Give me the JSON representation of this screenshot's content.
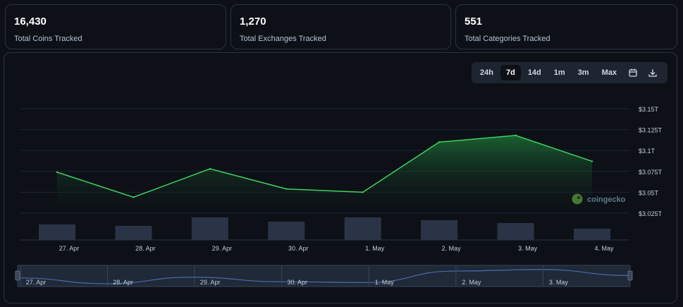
{
  "stats": [
    {
      "value": "16,430",
      "label": "Total Coins Tracked"
    },
    {
      "value": "1,270",
      "label": "Total Exchanges Tracked"
    },
    {
      "value": "551",
      "label": "Total Categories Tracked"
    }
  ],
  "range_buttons": [
    "24h",
    "7d",
    "14d",
    "1m",
    "3m",
    "Max"
  ],
  "active_range": "7d",
  "icons": {
    "calendar": "calendar-icon",
    "download": "download-icon"
  },
  "watermark": "coingecko",
  "colors": {
    "line": "#3ed160",
    "accent_bg": "#1e2530",
    "volume": "#2a3446",
    "navigator_line": "#4b6ab0"
  },
  "chart_data": {
    "type": "area",
    "x": [
      "27. Apr",
      "28. Apr",
      "29. Apr",
      "30. Apr",
      "1. May",
      "2. May",
      "3. May",
      "4. May"
    ],
    "series": [
      {
        "values": [
          3.074,
          3.044,
          3.078,
          3.054,
          3.05,
          3.11,
          3.118,
          3.087
        ]
      }
    ],
    "volume": [
      22,
      20,
      32,
      26,
      32,
      28,
      24,
      16
    ],
    "y_ticks": [
      "$3.15T",
      "$3.125T",
      "$3.1T",
      "$3.075T",
      "$3.05T",
      "$3.025T"
    ],
    "ylim": [
      3.025,
      3.15
    ],
    "navigator_ticks": [
      "27. Apr",
      "28. Apr",
      "29. Apr",
      "30. Apr",
      "1. May",
      "2. May",
      "3. May"
    ],
    "grid": true,
    "legend": "none"
  }
}
